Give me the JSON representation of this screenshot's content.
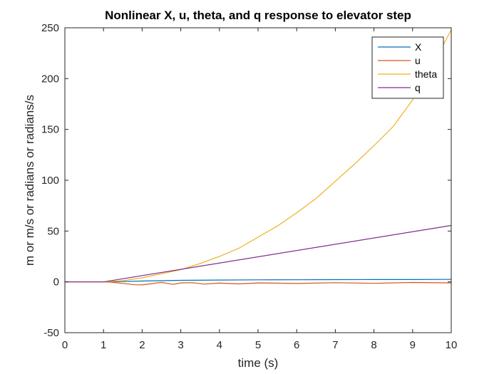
{
  "chart_data": {
    "type": "line",
    "title": "Nonlinear X, u, theta, and q response to elevator step",
    "xlabel": "time (s)",
    "ylabel": "m or m/s or radians or radians/s",
    "xlim": [
      0,
      10
    ],
    "ylim": [
      -50,
      250
    ],
    "xticks": [
      0,
      1,
      2,
      3,
      4,
      5,
      6,
      7,
      8,
      9,
      10
    ],
    "yticks": [
      -50,
      0,
      50,
      100,
      150,
      200,
      250
    ],
    "xtick_labels": [
      "0",
      "1",
      "2",
      "3",
      "4",
      "5",
      "6",
      "7",
      "8",
      "9",
      "10"
    ],
    "ytick_labels": [
      "-50",
      "0",
      "50",
      "100",
      "150",
      "200",
      "250"
    ],
    "grid": false,
    "legend_position": "top-right",
    "series": [
      {
        "name": "X",
        "color": "#0072BD",
        "x": [
          0,
          1,
          1.5,
          2,
          2.5,
          3,
          4,
          5,
          6,
          7,
          8,
          9,
          10
        ],
        "y": [
          0,
          0,
          0.3,
          0.8,
          1.2,
          1.5,
          1.8,
          2.0,
          2.1,
          2.2,
          2.3,
          2.3,
          2.4
        ]
      },
      {
        "name": "u",
        "color": "#D95319",
        "x": [
          0,
          1.0,
          1.2,
          1.5,
          1.8,
          2.0,
          2.2,
          2.5,
          2.8,
          3.0,
          3.3,
          3.6,
          4.0,
          4.5,
          5.0,
          6.0,
          7.0,
          8.0,
          9.0,
          10.0
        ],
        "y": [
          0,
          0,
          -0.3,
          -1.5,
          -2.8,
          -3.0,
          -2.0,
          -0.5,
          -2.5,
          -1.0,
          -0.8,
          -2.2,
          -1.2,
          -2.0,
          -1.0,
          -1.6,
          -0.8,
          -1.4,
          -0.6,
          -1.0
        ]
      },
      {
        "name": "theta",
        "color": "#EDB120",
        "x": [
          0,
          1,
          1.5,
          2,
          2.5,
          3,
          3.5,
          4,
          4.5,
          5,
          5.5,
          6,
          6.5,
          7,
          7.5,
          8,
          8.5,
          9,
          9.5,
          10
        ],
        "y": [
          0,
          0,
          1.2,
          4,
          8,
          12,
          18,
          25,
          33,
          44,
          55,
          68,
          82,
          99,
          116,
          134,
          153,
          179,
          212,
          248
        ]
      },
      {
        "name": "q",
        "color": "#7E2F8E",
        "x": [
          0,
          1,
          10
        ],
        "y": [
          0,
          0,
          55.5
        ]
      }
    ]
  }
}
